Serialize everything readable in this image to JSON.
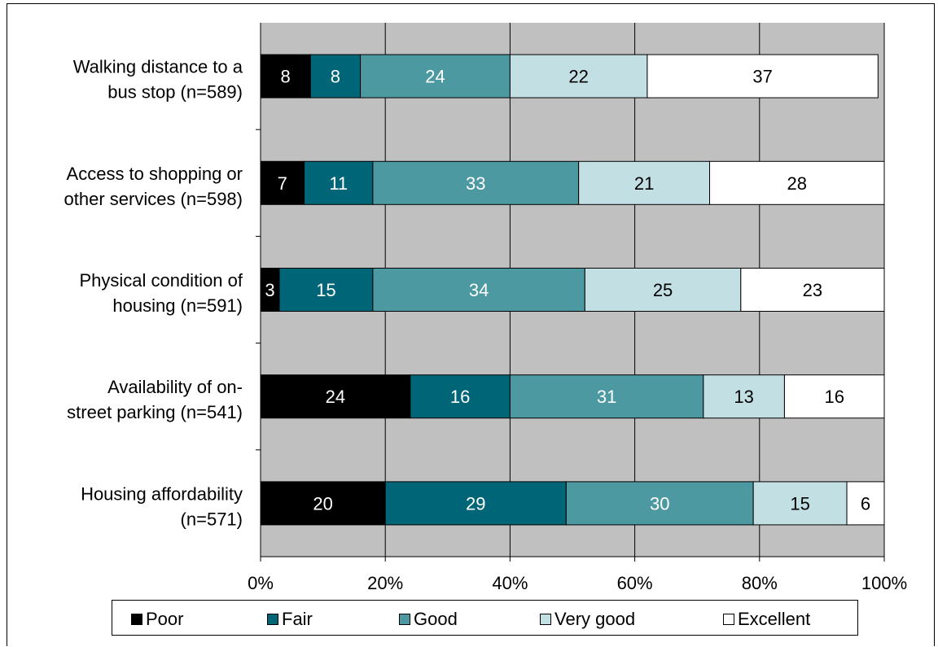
{
  "chart_data": {
    "type": "bar",
    "orientation": "horizontal",
    "stacked": true,
    "categories": [
      [
        "Walking distance to a",
        "bus stop (n=589)"
      ],
      [
        "Access to shopping or",
        "other services (n=598)"
      ],
      [
        "Physical condition of",
        "housing (n=591)"
      ],
      [
        "Availability of on-",
        "street parking (n=541)"
      ],
      [
        "Housing affordability",
        "(n=571)"
      ]
    ],
    "series": [
      {
        "name": "Poor",
        "color": "#000000",
        "label_color": "#ffffff",
        "values": [
          8,
          7,
          3,
          24,
          20
        ]
      },
      {
        "name": "Fair",
        "color": "#006677",
        "label_color": "#ffffff",
        "values": [
          8,
          11,
          15,
          16,
          29
        ]
      },
      {
        "name": "Good",
        "color": "#4d99a2",
        "label_color": "#ffffff",
        "values": [
          24,
          33,
          34,
          31,
          30
        ]
      },
      {
        "name": "Very good",
        "color": "#c2e0e4",
        "label_color": "#000000",
        "values": [
          22,
          21,
          25,
          13,
          15
        ]
      },
      {
        "name": "Excellent",
        "color": "#ffffff",
        "label_color": "#000000",
        "values": [
          37,
          28,
          23,
          16,
          6
        ]
      }
    ],
    "xlim": [
      0,
      100
    ],
    "x_ticks": [
      "0%",
      "20%",
      "40%",
      "60%",
      "80%",
      "100%"
    ],
    "plot_background": "#c0c0c0",
    "grid": true,
    "legend_position": "bottom"
  }
}
